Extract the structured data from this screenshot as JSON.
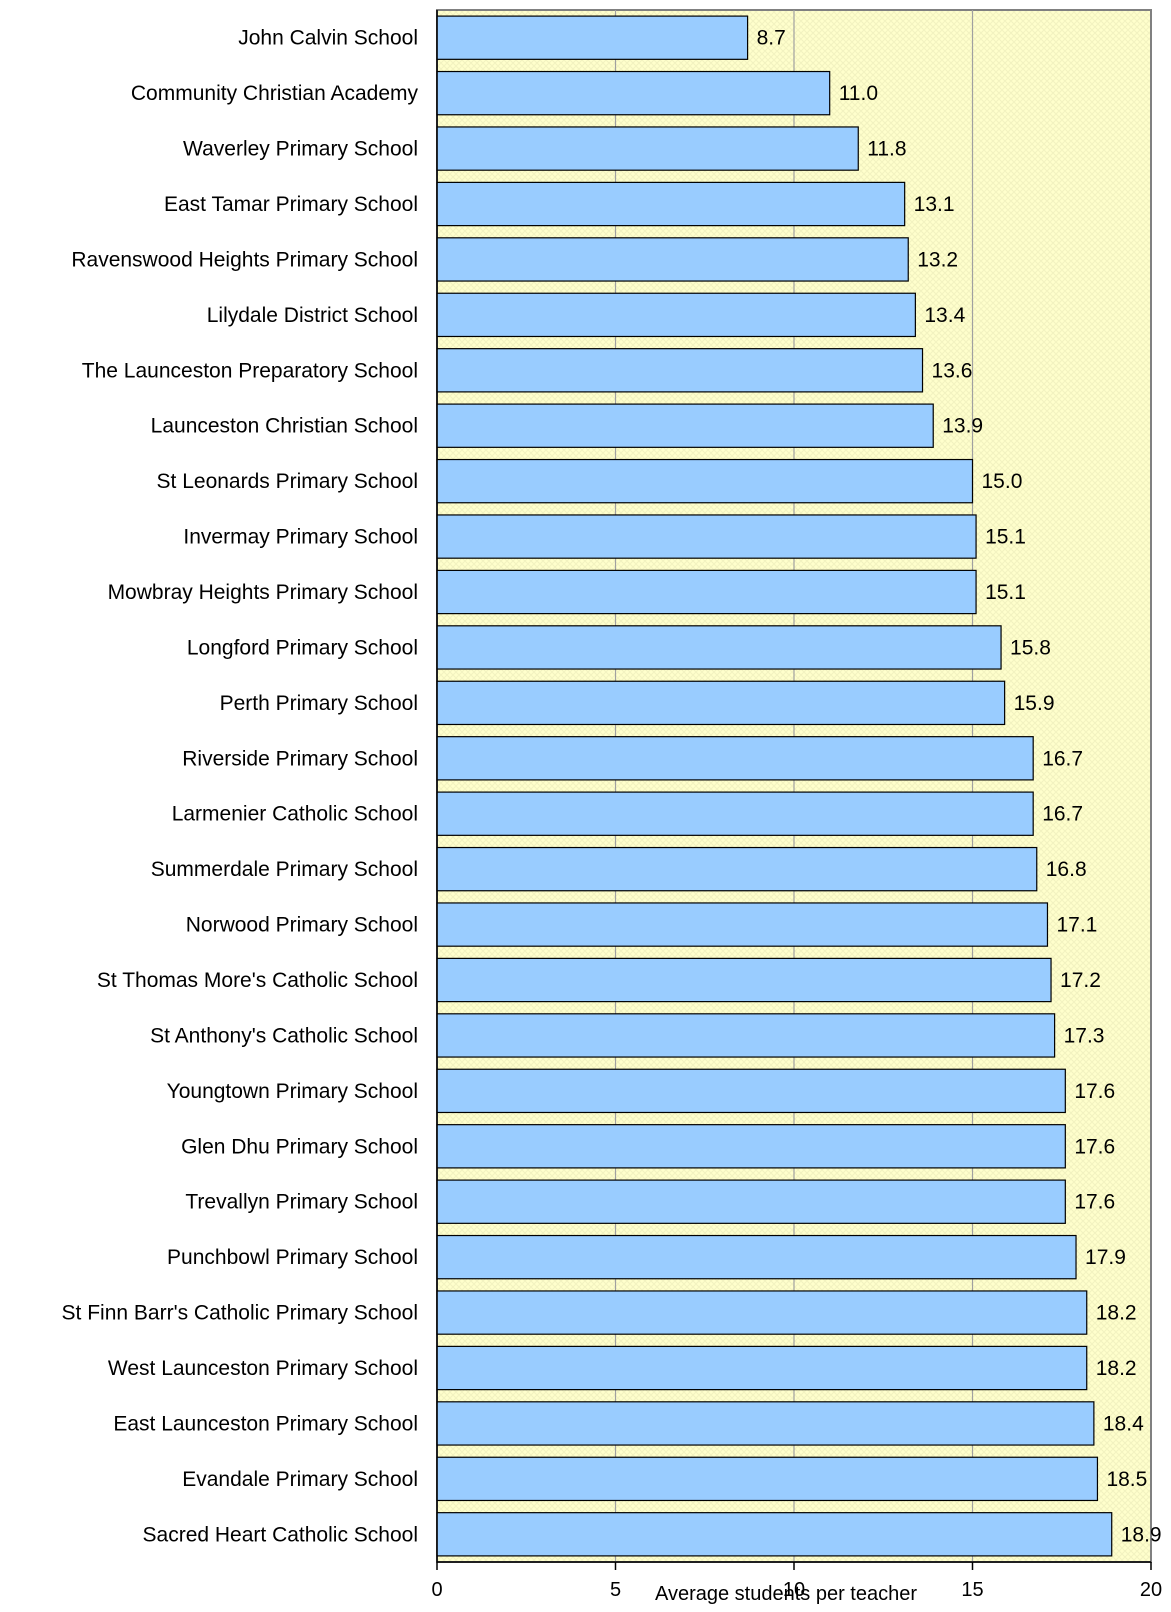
{
  "chart_data": {
    "type": "bar",
    "orientation": "horizontal",
    "title": "",
    "xlabel": "Average students per teacher",
    "ylabel": "",
    "xlim": [
      0,
      20
    ],
    "xticks": [
      0,
      5,
      10,
      15,
      20
    ],
    "xtick_labels": [
      "0",
      "5",
      "10",
      "15",
      "20"
    ],
    "grid": "vertical gridlines at 5, 10, 15",
    "legend": "none",
    "categories": [
      "John Calvin School",
      "Community Christian Academy",
      "Waverley Primary School",
      "East Tamar Primary School",
      "Ravenswood Heights Primary School",
      "Lilydale District School",
      "The Launceston Preparatory School",
      "Launceston Christian School",
      "St Leonards Primary School",
      "Invermay Primary School",
      "Mowbray Heights Primary School",
      "Longford Primary School",
      "Perth Primary School",
      "Riverside Primary School",
      "Larmenier Catholic School",
      "Summerdale Primary School",
      "Norwood Primary School",
      "St Thomas More's Catholic School",
      "St Anthony's Catholic School",
      "Youngtown Primary School",
      "Glen Dhu Primary School",
      "Trevallyn Primary School",
      "Punchbowl Primary School",
      "St Finn Barr's Catholic Primary School",
      "West Launceston Primary School",
      "East Launceston Primary School",
      "Evandale Primary School",
      "Sacred Heart Catholic School"
    ],
    "values": [
      8.7,
      11.0,
      11.8,
      13.1,
      13.2,
      13.4,
      13.6,
      13.9,
      15.0,
      15.1,
      15.1,
      15.8,
      15.9,
      16.7,
      16.7,
      16.8,
      17.1,
      17.2,
      17.3,
      17.6,
      17.6,
      17.6,
      17.9,
      18.2,
      18.2,
      18.4,
      18.5,
      18.9
    ],
    "value_labels": [
      "8.7",
      "11.0",
      "11.8",
      "13.1",
      "13.2",
      "13.4",
      "13.6",
      "13.9",
      "15.0",
      "15.1",
      "15.1",
      "15.8",
      "15.9",
      "16.7",
      "16.7",
      "16.8",
      "17.1",
      "17.2",
      "17.3",
      "17.6",
      "17.6",
      "17.6",
      "17.9",
      "18.2",
      "18.2",
      "18.4",
      "18.5",
      "18.9"
    ],
    "colors": {
      "bar_fill": "#99ccff",
      "bar_stroke": "#000000",
      "plot_background": "#ffffcc",
      "plot_pattern": "#f2f2c0",
      "plot_border": "#808080",
      "gridline": "#a0a0a0",
      "axis": "#000000"
    }
  }
}
